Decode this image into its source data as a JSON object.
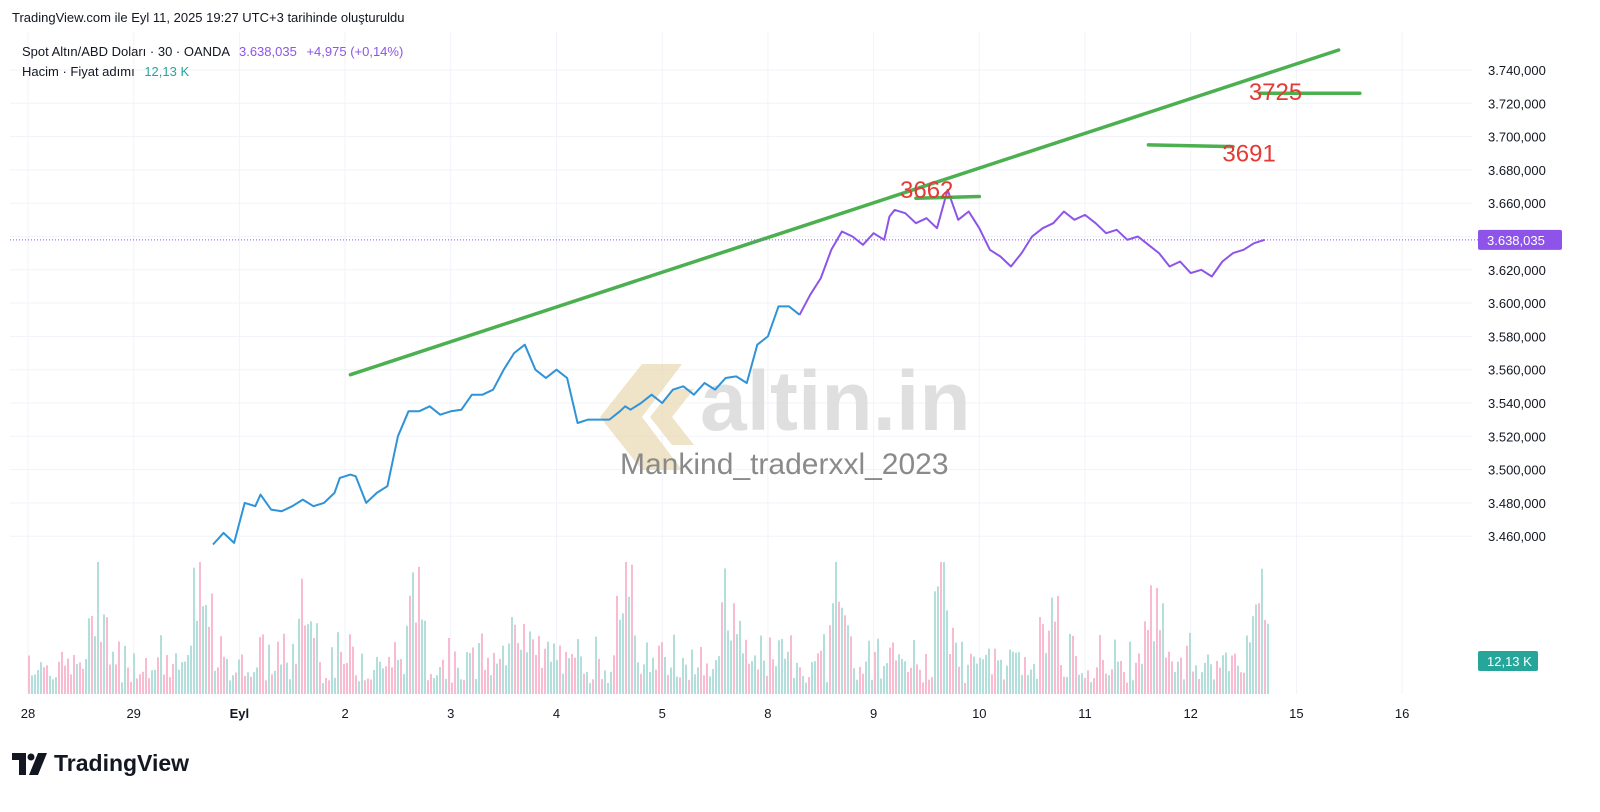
{
  "caption": "TradingView.com ile Eyl 11, 2025 19:27 UTC+3 tarihinde oluşturuldu",
  "legend": {
    "symbol": "Spot Altın/ABD Doları · 30 · OANDA",
    "price": "3.638,035",
    "change": "+4,975 (+0,14%)",
    "volume_label": "Hacim · Fiyat adımı",
    "volume_value": "12,13 K"
  },
  "brand": "TradingView",
  "watermark_logo": "altin.in",
  "watermark_text": "Mankind_traderxxl_2023",
  "colors": {
    "price_line_early": "#2f93d8",
    "price_line_late": "#8e54e9",
    "trend_line": "#4caf50",
    "annotation": "#e53935",
    "volume_up": "#b2dfdb",
    "volume_down": "#f8bbd0",
    "price_badge": "#8e54e9",
    "volume_badge": "#26a69a"
  },
  "chart_data": {
    "type": "line",
    "title": "",
    "x_ticks": [
      "28",
      "29",
      "Eyl",
      "2",
      "3",
      "4",
      "5",
      "8",
      "9",
      "10",
      "11",
      "12",
      "15",
      "16"
    ],
    "y_ticks": [
      "3.740,000",
      "3.720,000",
      "3.700,000",
      "3.680,000",
      "3.660,000",
      "3.640,000",
      "3.620,000",
      "3.600,000",
      "3.580,000",
      "3.560,000",
      "3.540,000",
      "3.520,000",
      "3.500,000",
      "3.480,000",
      "3.460,000"
    ],
    "ylim": [
      3453,
      3748
    ],
    "x_range": [
      0,
      13.7
    ],
    "current_price_label": "3.638,035",
    "volume_label": "12,13 K",
    "series": [
      {
        "name": "",
        "x": [
          1.75,
          1.85,
          1.95,
          2.05,
          2.15,
          2.2,
          2.3,
          2.4,
          2.5,
          2.6,
          2.7,
          2.8,
          2.9,
          2.95,
          3.05,
          3.1,
          3.2,
          3.3,
          3.4,
          3.5,
          3.6,
          3.7,
          3.8,
          3.9,
          4.0,
          4.1,
          4.2,
          4.3,
          4.4,
          4.5,
          4.6,
          4.7,
          4.8,
          4.9,
          5.0,
          5.1,
          5.2,
          5.3,
          5.4,
          5.5,
          5.6,
          5.65,
          5.7,
          5.8,
          5.9,
          6.0,
          6.1,
          6.2,
          6.3,
          6.4,
          6.5,
          6.6,
          6.7,
          6.8,
          6.9,
          7.0,
          7.1,
          7.2,
          7.3
        ],
        "values": [
          3455,
          3462,
          3456,
          3480,
          3478,
          3485,
          3476,
          3475,
          3478,
          3482,
          3478,
          3480,
          3486,
          3495,
          3497,
          3496,
          3480,
          3486,
          3490,
          3520,
          3535,
          3535,
          3538,
          3533,
          3535,
          3536,
          3545,
          3545,
          3548,
          3560,
          3570,
          3575,
          3560,
          3555,
          3560,
          3555,
          3528,
          3530,
          3530,
          3530,
          3535,
          3538,
          3536,
          3540,
          3545,
          3540,
          3548,
          3550,
          3545,
          3552,
          3548,
          3555,
          3556,
          3552,
          3575,
          3580,
          3598,
          3598,
          3593
        ]
      },
      {
        "name": "",
        "x": [
          7.3,
          7.4,
          7.5,
          7.6,
          7.7,
          7.8,
          7.9,
          8.0,
          8.1,
          8.15,
          8.2,
          8.3,
          8.4,
          8.5,
          8.6,
          8.7,
          8.8,
          8.9,
          8.95,
          9.0,
          9.1,
          9.2,
          9.3,
          9.4,
          9.5,
          9.6,
          9.7,
          9.8,
          9.9,
          10.0,
          10.1,
          10.2,
          10.3,
          10.4,
          10.5,
          10.6,
          10.7,
          10.8,
          10.9,
          11.0,
          11.1,
          11.2,
          11.3,
          11.4,
          11.5,
          11.6,
          11.7
        ],
        "values": [
          3593,
          3605,
          3615,
          3632,
          3643,
          3640,
          3635,
          3642,
          3638,
          3652,
          3656,
          3654,
          3648,
          3651,
          3645,
          3668,
          3650,
          3655,
          3650,
          3645,
          3632,
          3628,
          3622,
          3630,
          3640,
          3645,
          3648,
          3655,
          3650,
          3653,
          3648,
          3642,
          3644,
          3638,
          3640,
          3635,
          3630,
          3622,
          3625,
          3618,
          3620,
          3616,
          3625,
          3630,
          3632,
          3636,
          3638
        ]
      }
    ],
    "volume": {
      "x_range": [
        0,
        11.75
      ],
      "max": 3.4
    },
    "annotations": [
      {
        "text": "3662",
        "x": 8.25,
        "y": 3663
      },
      {
        "text": "3691",
        "x": 11.3,
        "y": 3685
      },
      {
        "text": "3725",
        "x": 11.55,
        "y": 3722
      }
    ],
    "trend_lines": [
      {
        "x1": 3.05,
        "y1": 3557,
        "x2": 12.4,
        "y2": 3752
      },
      {
        "x1": 8.4,
        "y1": 3663,
        "x2": 9.0,
        "y2": 3664
      },
      {
        "x1": 10.6,
        "y1": 3695,
        "x2": 11.4,
        "y2": 3694
      },
      {
        "x1": 11.65,
        "y1": 3726,
        "x2": 12.6,
        "y2": 3726
      }
    ],
    "grid": true,
    "legend_position": "top-left"
  }
}
